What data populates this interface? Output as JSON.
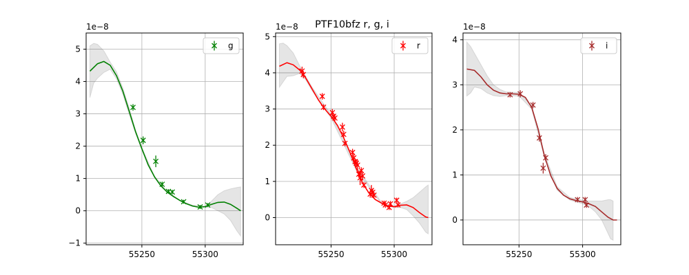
{
  "figure_title": "PTF10bfz  r, g, i",
  "chart_data": [
    {
      "type": "line",
      "band": "g",
      "color": "#008000",
      "xlim": [
        55206,
        55330
      ],
      "ylim": [
        -1.05,
        5.5
      ],
      "y_scale_label": "1e−8",
      "xticks": [
        55250,
        55300
      ],
      "yticks": [
        -1,
        0,
        1,
        2,
        3,
        4,
        5
      ],
      "ytick_labels": [
        "−1",
        "0",
        "1",
        "2",
        "3",
        "4",
        "5"
      ],
      "xtick_labels": [
        "55250",
        "55300"
      ],
      "legend": {
        "label": "g",
        "position": "top-right"
      },
      "grid": true,
      "fit_curve": {
        "x": [
          55209,
          55215,
          55220,
          55225,
          55230,
          55235,
          55240,
          55245,
          55250,
          55255,
          55260,
          55265,
          55270,
          55275,
          55280,
          55285,
          55290,
          55295,
          55300,
          55305,
          55310,
          55315,
          55320,
          55325,
          55328
        ],
        "y": [
          4.32,
          4.55,
          4.62,
          4.5,
          4.18,
          3.7,
          3.08,
          2.45,
          1.92,
          1.42,
          1.05,
          0.77,
          0.58,
          0.44,
          0.32,
          0.22,
          0.15,
          0.11,
          0.13,
          0.2,
          0.26,
          0.27,
          0.2,
          0.08,
          0.0
        ]
      },
      "uncertainty_band": {
        "x": [
          55209,
          55212,
          55215,
          55220,
          55225,
          55230,
          55235,
          55240,
          55245,
          55250,
          55260,
          55270,
          55280,
          55290,
          55300,
          55305,
          55310,
          55315,
          55320,
          55325,
          55328
        ],
        "upper": [
          5.1,
          5.18,
          5.15,
          4.95,
          4.6,
          4.3,
          3.8,
          3.18,
          2.5,
          1.95,
          1.07,
          0.6,
          0.33,
          0.17,
          0.14,
          0.3,
          0.5,
          0.62,
          0.68,
          0.72,
          0.74
        ],
        "lower": [
          3.5,
          3.95,
          4.1,
          4.28,
          4.38,
          4.08,
          3.6,
          2.98,
          2.4,
          1.88,
          1.03,
          0.56,
          0.31,
          0.13,
          0.1,
          0.1,
          0.0,
          -0.1,
          -0.3,
          -0.62,
          -0.78
        ]
      },
      "points": {
        "x": [
          55243,
          55251,
          55261,
          55266,
          55271,
          55274,
          55283,
          55296,
          55302
        ],
        "y": [
          3.2,
          2.18,
          1.53,
          0.82,
          0.6,
          0.58,
          0.28,
          0.12,
          0.18
        ],
        "err": [
          0.1,
          0.12,
          0.18,
          0.08,
          0.07,
          0.07,
          0.06,
          0.06,
          0.06
        ]
      }
    },
    {
      "type": "line",
      "band": "r",
      "color": "#ff0000",
      "xlim": [
        55206,
        55330
      ],
      "ylim": [
        -0.75,
        5.1
      ],
      "y_scale_label": "1e−8",
      "xticks": [
        55250,
        55300
      ],
      "yticks": [
        0,
        1,
        2,
        3,
        4,
        5
      ],
      "ytick_labels": [
        "0",
        "1",
        "2",
        "3",
        "4",
        "5"
      ],
      "xtick_labels": [
        "55250",
        "55300"
      ],
      "legend": {
        "label": "r",
        "position": "top-right"
      },
      "grid": true,
      "fit_curve": {
        "x": [
          55209,
          55215,
          55220,
          55225,
          55230,
          55235,
          55240,
          55245,
          55250,
          55255,
          55260,
          55265,
          55270,
          55275,
          55280,
          55285,
          55290,
          55295,
          55300,
          55305,
          55310,
          55315,
          55320,
          55325,
          55327
        ],
        "y": [
          4.18,
          4.28,
          4.22,
          4.08,
          3.85,
          3.55,
          3.25,
          3.0,
          2.8,
          2.55,
          2.2,
          1.8,
          1.35,
          0.95,
          0.68,
          0.5,
          0.4,
          0.32,
          0.3,
          0.34,
          0.35,
          0.28,
          0.14,
          0.02,
          0.0
        ]
      },
      "uncertainty_band": {
        "x": [
          55209,
          55212,
          55215,
          55220,
          55225,
          55230,
          55235,
          55250,
          55270,
          55290,
          55300,
          55305,
          55310,
          55315,
          55320,
          55325,
          55327
        ],
        "upper": [
          4.8,
          4.82,
          4.75,
          4.55,
          4.2,
          3.9,
          3.6,
          2.85,
          1.4,
          0.42,
          0.32,
          0.38,
          0.45,
          0.55,
          0.7,
          0.85,
          0.9
        ],
        "lower": [
          3.6,
          3.75,
          3.9,
          3.92,
          3.98,
          3.8,
          3.5,
          2.75,
          1.3,
          0.38,
          0.28,
          0.28,
          0.22,
          0.05,
          -0.15,
          -0.4,
          -0.45
        ]
      },
      "points": {
        "x": [
          55227,
          55228,
          55243,
          55244,
          55251,
          55252,
          55253,
          55259,
          55260,
          55261,
          55267,
          55268,
          55269,
          55270,
          55271,
          55272,
          55273,
          55274,
          55275,
          55276,
          55281,
          55282,
          55283,
          55284,
          55292,
          55293,
          55296,
          55297,
          55302,
          55303
        ],
        "y": [
          4.05,
          3.95,
          3.35,
          3.05,
          2.9,
          2.8,
          2.75,
          2.5,
          2.3,
          2.05,
          1.8,
          1.65,
          1.55,
          1.5,
          1.45,
          1.2,
          1.1,
          1.3,
          1.15,
          0.9,
          0.65,
          0.75,
          0.7,
          0.62,
          0.4,
          0.35,
          0.28,
          0.38,
          0.48,
          0.35
        ],
        "err": [
          0.12,
          0.1,
          0.09,
          0.08,
          0.1,
          0.09,
          0.08,
          0.12,
          0.1,
          0.08,
          0.1,
          0.12,
          0.09,
          0.1,
          0.15,
          0.1,
          0.2,
          0.09,
          0.12,
          0.08,
          0.1,
          0.15,
          0.1,
          0.08,
          0.07,
          0.08,
          0.07,
          0.08,
          0.07,
          0.07
        ]
      }
    },
    {
      "type": "line",
      "band": "i",
      "color": "#a52a2a",
      "xlim": [
        55206,
        55330
      ],
      "ylim": [
        -0.55,
        4.15
      ],
      "y_scale_label": "1e−8",
      "xticks": [
        55250,
        55300
      ],
      "yticks": [
        0,
        1,
        2,
        3,
        4
      ],
      "ytick_labels": [
        "0",
        "1",
        "2",
        "3",
        "4"
      ],
      "xtick_labels": [
        "55250",
        "55300"
      ],
      "legend": {
        "label": "i",
        "position": "top-right"
      },
      "grid": true,
      "fit_curve": {
        "x": [
          55209,
          55215,
          55220,
          55225,
          55230,
          55235,
          55240,
          55245,
          55250,
          55255,
          55260,
          55265,
          55270,
          55275,
          55280,
          55285,
          55290,
          55295,
          55300,
          55305,
          55310,
          55315,
          55320,
          55324,
          55327
        ],
        "y": [
          3.35,
          3.32,
          3.18,
          3.0,
          2.88,
          2.82,
          2.8,
          2.8,
          2.79,
          2.72,
          2.5,
          2.02,
          1.42,
          0.98,
          0.7,
          0.55,
          0.47,
          0.43,
          0.4,
          0.36,
          0.3,
          0.18,
          0.06,
          0.0,
          0.0
        ]
      },
      "uncertainty_band": {
        "x": [
          55209,
          55212,
          55215,
          55220,
          55225,
          55230,
          55235,
          55240,
          55250,
          55260,
          55270,
          55280,
          55290,
          55300,
          55305,
          55310,
          55315,
          55320,
          55322,
          55324
        ],
        "upper": [
          3.95,
          3.85,
          3.7,
          3.45,
          3.2,
          3.0,
          2.9,
          2.84,
          2.83,
          2.54,
          1.46,
          0.74,
          0.5,
          0.44,
          0.42,
          0.42,
          0.42,
          0.45,
          0.45,
          0.42
        ],
        "lower": [
          2.75,
          2.82,
          2.95,
          2.92,
          2.82,
          2.76,
          2.74,
          2.76,
          2.75,
          2.46,
          1.38,
          0.66,
          0.44,
          0.36,
          0.3,
          0.18,
          0.0,
          -0.3,
          -0.42,
          -0.45
        ]
      },
      "points": {
        "x": [
          55243,
          55251,
          55261,
          55266,
          55269,
          55271,
          55296,
          55302,
          55303
        ],
        "y": [
          2.78,
          2.8,
          2.55,
          1.82,
          1.15,
          1.38,
          0.45,
          0.45,
          0.33
        ],
        "err": [
          0.06,
          0.08,
          0.07,
          0.08,
          0.12,
          0.08,
          0.06,
          0.06,
          0.06
        ]
      }
    }
  ]
}
